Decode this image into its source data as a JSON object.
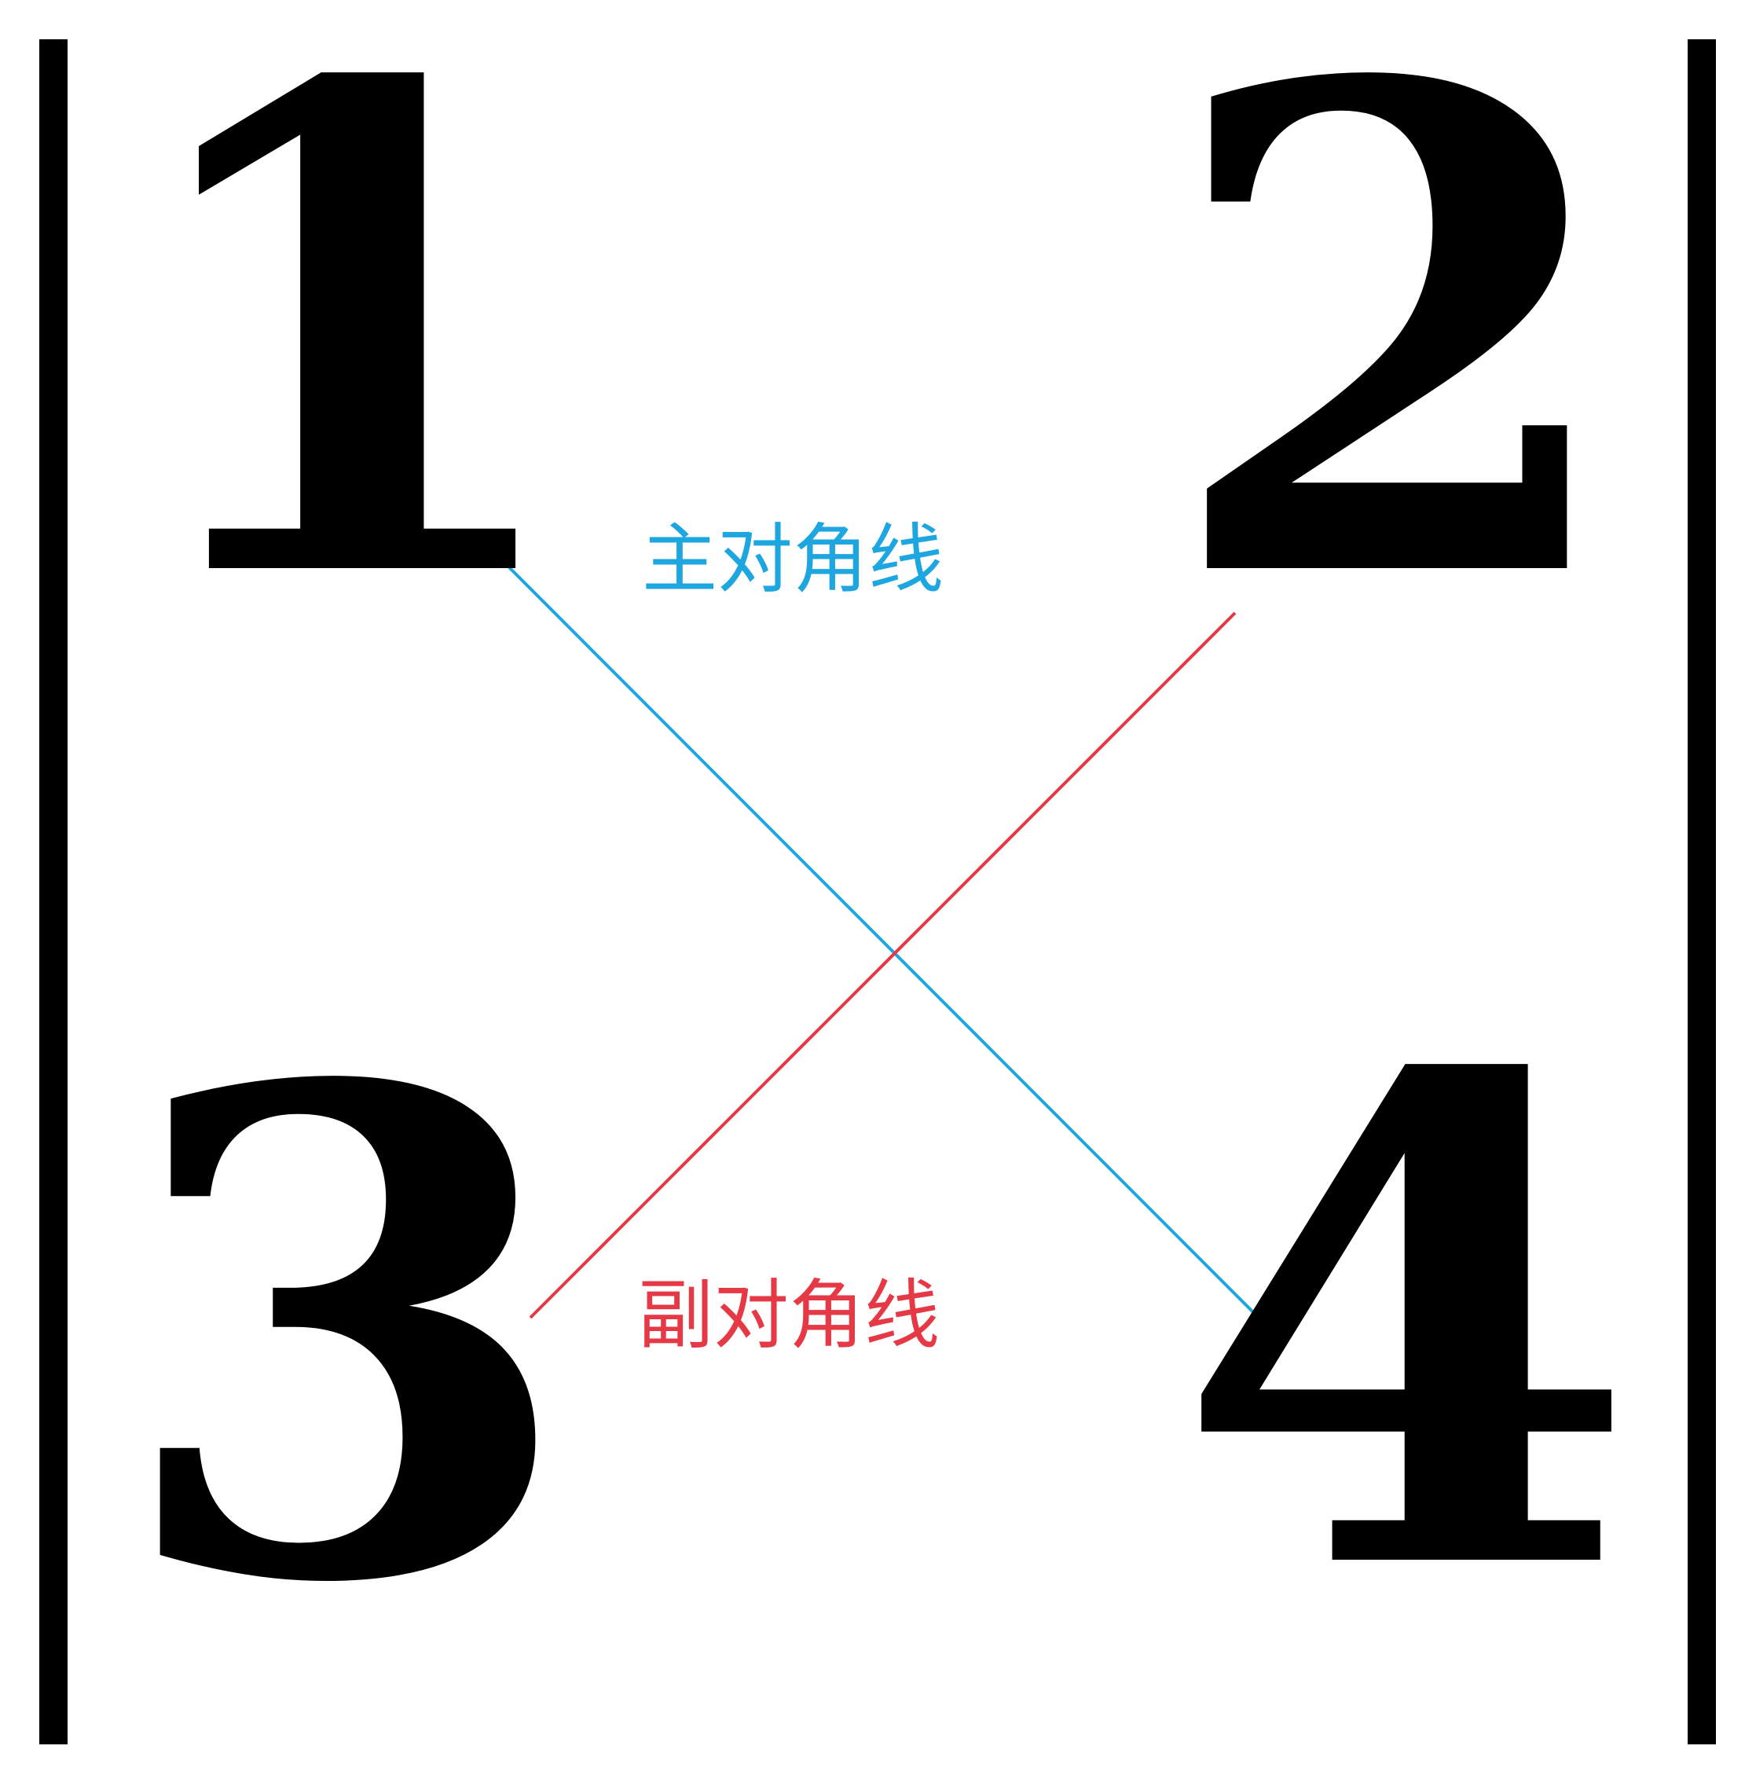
{
  "matrix": {
    "entries": [
      {
        "id": "a11",
        "text": "1"
      },
      {
        "id": "a12",
        "text": "2"
      },
      {
        "id": "a21",
        "text": "3"
      },
      {
        "id": "a22",
        "text": "4"
      }
    ]
  },
  "diagonals": {
    "main": {
      "label": "主对角线",
      "color": "#1ea6e0"
    },
    "anti": {
      "label": "副对角线",
      "color": "#e63946"
    }
  },
  "colors": {
    "bars": "#000000",
    "entries": "#000000",
    "background": "#ffffff"
  }
}
